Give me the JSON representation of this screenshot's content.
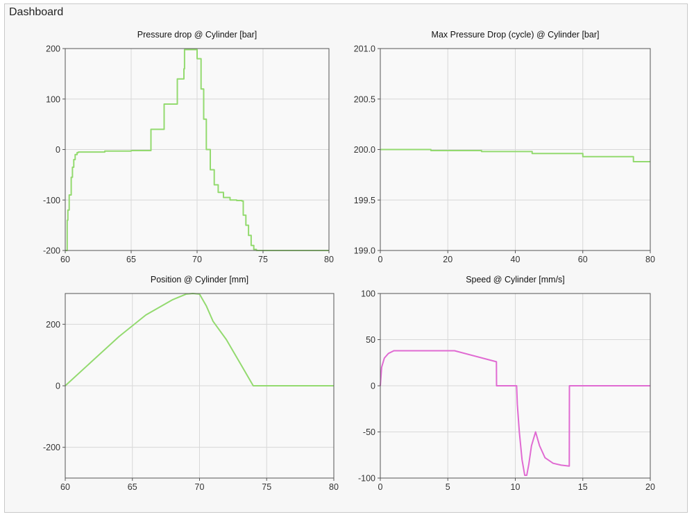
{
  "dashboard": {
    "title": "Dashboard"
  },
  "colors": {
    "green": "#93da6f",
    "magenta": "#e06ad2",
    "grid": "#d8d8d8",
    "frame": "#555555",
    "plot_bg": "#f9f9f9"
  },
  "chart_data": [
    {
      "type": "line",
      "title": "Pressure drop @ Cylinder [bar]",
      "xlim": [
        60,
        80
      ],
      "ylim": [
        -200,
        200
      ],
      "xticks": [
        60,
        65,
        70,
        75,
        80
      ],
      "yticks": [
        -200,
        -100,
        0,
        100,
        200
      ],
      "xtick_labels": [
        "60",
        "65",
        "70",
        "75",
        "80"
      ],
      "ytick_labels": [
        "-200",
        "-100",
        "0",
        "100",
        "200"
      ],
      "color": "green",
      "step": true,
      "series": [
        {
          "x": [
            60.0,
            60.15,
            60.2,
            60.3,
            60.45,
            60.55,
            60.65,
            60.75,
            60.9,
            61.0,
            61.3,
            63.0,
            65.0,
            65.7,
            66.5,
            67.5,
            68.5,
            69.0,
            69.05,
            69.9,
            70.0,
            70.3,
            70.5,
            70.7,
            71.0,
            71.3,
            71.6,
            72.0,
            72.5,
            73.0,
            73.4,
            73.5,
            73.7,
            73.9,
            74.1,
            74.3,
            74.5,
            75.0,
            78.0,
            80.0
          ],
          "y": [
            -200,
            -140,
            -120,
            -90,
            -55,
            -35,
            -20,
            -10,
            -6,
            -5,
            -5,
            -3,
            -2,
            -2,
            40,
            90,
            140,
            160,
            198,
            198,
            180,
            120,
            60,
            0,
            -40,
            -70,
            -85,
            -95,
            -100,
            -101,
            -102,
            -130,
            -150,
            -170,
            -190,
            -198,
            -200,
            -200,
            -200,
            -200
          ]
        }
      ]
    },
    {
      "type": "line",
      "title": "Max Pressure Drop (cycle) @ Cylinder [bar]",
      "xlim": [
        0,
        80
      ],
      "ylim": [
        199.0,
        201.0
      ],
      "xticks": [
        0,
        20,
        40,
        60,
        80
      ],
      "yticks": [
        199.0,
        199.5,
        200.0,
        200.5,
        201.0
      ],
      "xtick_labels": [
        "0",
        "20",
        "40",
        "60",
        "80"
      ],
      "ytick_labels": [
        "199.0",
        "199.5",
        "200.0",
        "200.5",
        "201.0"
      ],
      "color": "green",
      "step": true,
      "series": [
        {
          "x": [
            0,
            15,
            30,
            45,
            60,
            75,
            80
          ],
          "y": [
            200.0,
            199.99,
            199.98,
            199.96,
            199.93,
            199.88,
            199.88
          ]
        }
      ]
    },
    {
      "type": "line",
      "title": "Position @ Cylinder [mm]",
      "xlim": [
        60,
        80
      ],
      "ylim": [
        -300,
        300
      ],
      "xticks": [
        60,
        65,
        70,
        75,
        80
      ],
      "yticks": [
        -200,
        0,
        200
      ],
      "xtick_labels": [
        "60",
        "65",
        "70",
        "75",
        "80"
      ],
      "ytick_labels": [
        "-200",
        "0",
        "200"
      ],
      "color": "green",
      "step": false,
      "series": [
        {
          "x": [
            60.0,
            62.0,
            64.0,
            66.0,
            68.0,
            69.0,
            69.5,
            70.0,
            70.5,
            71.0,
            72.0,
            73.0,
            74.0,
            74.2,
            76.0,
            78.0,
            80.0
          ],
          "y": [
            0,
            80,
            160,
            230,
            280,
            298,
            300,
            298,
            260,
            210,
            150,
            75,
            0,
            0,
            0,
            0,
            0
          ]
        }
      ]
    },
    {
      "type": "line",
      "title": "Speed @ Cylinder [mm/s]",
      "xlim": [
        0,
        20
      ],
      "ylim": [
        -100,
        100
      ],
      "xticks": [
        0,
        5,
        10,
        15,
        20
      ],
      "yticks": [
        -100,
        -50,
        0,
        50,
        100
      ],
      "xtick_labels": [
        "0",
        "5",
        "10",
        "15",
        "20"
      ],
      "ytick_labels": [
        "-100",
        "-50",
        "0",
        "50",
        "100"
      ],
      "color": "magenta",
      "step": false,
      "series": [
        {
          "x": [
            0.0,
            0.1,
            0.3,
            0.6,
            1.0,
            2.0,
            5.5,
            8.6,
            8.61,
            10.1,
            10.15,
            10.3,
            10.5,
            10.7,
            10.85,
            11.0,
            11.2,
            11.5,
            11.8,
            12.2,
            12.8,
            13.4,
            14.0,
            14.01,
            15.0,
            20.0
          ],
          "y": [
            0,
            20,
            30,
            35,
            38,
            38,
            38,
            26,
            0,
            0,
            -20,
            -50,
            -80,
            -97,
            -97,
            -85,
            -65,
            -50,
            -65,
            -78,
            -84,
            -86,
            -87,
            0,
            0,
            0
          ]
        }
      ]
    }
  ]
}
